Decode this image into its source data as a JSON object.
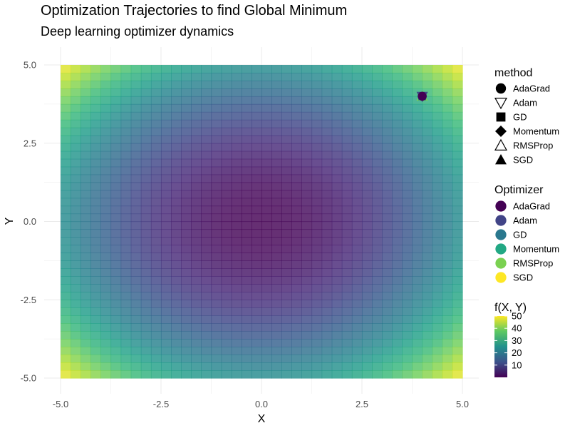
{
  "chart_data": {
    "type": "heatmap",
    "title": "Optimization Trajectories to find Global Minimum",
    "subtitle": "Deep learning optimizer dynamics",
    "xlabel": "X",
    "ylabel": "Y",
    "xlim": [
      -5,
      5
    ],
    "ylim": [
      -5,
      5
    ],
    "x_ticks": [
      -5.0,
      -2.5,
      0.0,
      2.5,
      5.0
    ],
    "x_tick_labels": [
      "-5.0",
      "-2.5",
      "0.0",
      "2.5",
      "5.0"
    ],
    "y_ticks": [
      -5.0,
      -2.5,
      0.0,
      2.5,
      5.0
    ],
    "y_tick_labels": [
      "-5.0",
      "-2.5",
      "0.0",
      "2.5",
      "5.0"
    ],
    "grid": true,
    "surface": {
      "fill_legend_title": "f(X, Y)",
      "value_range": [
        0,
        50
      ],
      "colorbar_ticks": [
        10,
        20,
        30,
        40,
        50
      ],
      "colormap": "viridis"
    },
    "series": [
      {
        "name": "AdaGrad",
        "shape": "circle",
        "color": "#440154",
        "points": [
          [
            4,
            4
          ]
        ]
      },
      {
        "name": "Adam",
        "shape": "triangle-down-open",
        "color": "#414487",
        "points": [
          [
            4,
            4
          ]
        ]
      },
      {
        "name": "GD",
        "shape": "square",
        "color": "#2A788E",
        "points": [
          [
            4,
            4
          ]
        ]
      },
      {
        "name": "Momentum",
        "shape": "diamond",
        "color": "#22A884",
        "points": [
          [
            4,
            4
          ]
        ]
      },
      {
        "name": "RMSProp",
        "shape": "triangle-up-open",
        "color": "#7AD151",
        "points": [
          [
            4,
            4
          ]
        ]
      },
      {
        "name": "SGD",
        "shape": "triangle-up",
        "color": "#FDE725",
        "points": [
          [
            4,
            4
          ]
        ]
      }
    ],
    "legends": {
      "method_title": "method",
      "method_labels": [
        "AdaGrad",
        "Adam",
        "GD",
        "Momentum",
        "RMSProp",
        "SGD"
      ],
      "optimizer_title": "Optimizer",
      "optimizer_labels": [
        "AdaGrad",
        "Adam",
        "GD",
        "Momentum",
        "RMSProp",
        "SGD"
      ],
      "placement": "right"
    }
  }
}
